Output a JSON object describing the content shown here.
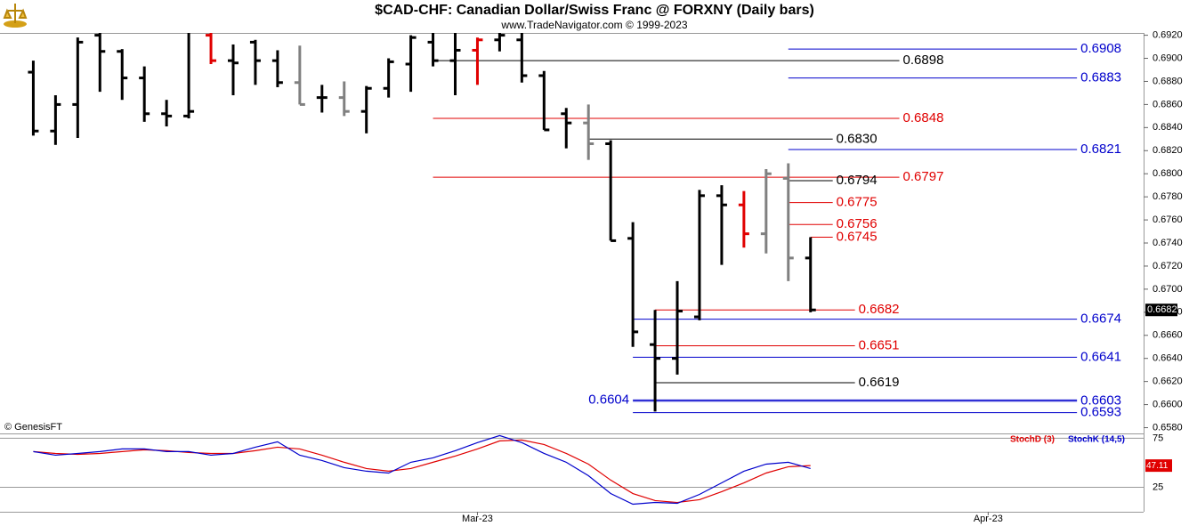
{
  "header": {
    "title": "$CAD-CHF:  Canadian Dollar/Swiss Franc @ FORXNY  (Daily bars)",
    "subtitle": "www.TradeNavigator.com © 1999-2023",
    "credit": "© GenesisFT"
  },
  "chart_data": [
    {
      "type": "ohlc",
      "x": [
        0,
        1,
        2,
        3,
        4,
        5,
        6,
        7,
        8,
        9,
        10,
        11,
        12,
        13,
        14,
        15,
        16,
        17,
        18,
        19,
        20,
        21,
        22,
        23,
        24,
        25,
        26,
        27,
        28,
        29,
        30,
        31,
        32,
        33,
        34,
        35
      ],
      "open": [
        0.6888,
        0.6837,
        0.686,
        0.692,
        0.6906,
        0.6883,
        0.6852,
        0.685,
        0.692,
        0.6898,
        0.6914,
        0.6898,
        0.6879,
        0.6866,
        0.6866,
        0.6854,
        0.6874,
        0.6895,
        0.6914,
        0.6898,
        0.6907,
        0.6916,
        0.6916,
        0.6885,
        0.6852,
        0.6844,
        0.6826,
        0.6744,
        0.6652,
        0.664,
        0.6676,
        0.6781,
        0.6773,
        0.6748,
        0.6796,
        0.6727
      ],
      "high": [
        0.6898,
        0.6868,
        0.6918,
        0.6922,
        0.6908,
        0.6893,
        0.6864,
        0.6922,
        0.6922,
        0.6912,
        0.6916,
        0.6907,
        0.6911,
        0.6877,
        0.688,
        0.6876,
        0.69,
        0.692,
        0.6922,
        0.6922,
        0.6918,
        0.6922,
        0.6922,
        0.6889,
        0.6857,
        0.686,
        0.6829,
        0.6758,
        0.6682,
        0.6707,
        0.6786,
        0.679,
        0.6785,
        0.6804,
        0.6809,
        0.6745
      ],
      "low": [
        0.6833,
        0.6825,
        0.6831,
        0.6871,
        0.6864,
        0.6845,
        0.6841,
        0.6848,
        0.6895,
        0.6868,
        0.6877,
        0.6875,
        0.686,
        0.6853,
        0.685,
        0.6835,
        0.6866,
        0.6871,
        0.6893,
        0.6868,
        0.6877,
        0.6906,
        0.6879,
        0.6838,
        0.6822,
        0.6812,
        0.6742,
        0.665,
        0.6594,
        0.6626,
        0.6673,
        0.6721,
        0.6736,
        0.6731,
        0.6707,
        0.668
      ],
      "close": [
        0.6837,
        0.686,
        0.6914,
        0.6906,
        0.6883,
        0.6852,
        0.685,
        0.6854,
        0.6898,
        0.6896,
        0.6898,
        0.6879,
        0.686,
        0.6866,
        0.6854,
        0.6874,
        0.6897,
        0.6918,
        0.6898,
        0.6907,
        0.6916,
        0.692,
        0.6885,
        0.6838,
        0.6844,
        0.6826,
        0.6742,
        0.6663,
        0.664,
        0.6681,
        0.6781,
        0.6773,
        0.6748,
        0.68,
        0.6727,
        0.6682
      ],
      "colors": [
        "#000000",
        "#000000",
        "#000000",
        "#000000",
        "#000000",
        "#000000",
        "#000000",
        "#000000",
        "#e00000",
        "#000000",
        "#000000",
        "#000000",
        "#808080",
        "#000000",
        "#808080",
        "#000000",
        "#000000",
        "#000000",
        "#000000",
        "#000000",
        "#e00000",
        "#000000",
        "#000000",
        "#000000",
        "#000000",
        "#808080",
        "#000000",
        "#000000",
        "#000000",
        "#000000",
        "#000000",
        "#000000",
        "#e00000",
        "#808080",
        "#808080",
        "#000000"
      ],
      "xlim": [
        -1.5,
        50
      ],
      "ylim": [
        0.6575,
        0.6922
      ],
      "yticks": [
        {
          "value": 0.658,
          "label": "0.6580"
        },
        {
          "value": 0.66,
          "label": "0.6600"
        },
        {
          "value": 0.662,
          "label": "0.6620"
        },
        {
          "value": 0.664,
          "label": "0.6640"
        },
        {
          "value": 0.666,
          "label": "0.6660"
        },
        {
          "value": 0.668,
          "label": "0.6680"
        },
        {
          "value": 0.67,
          "label": "0.6700"
        },
        {
          "value": 0.672,
          "label": "0.6720"
        },
        {
          "value": 0.674,
          "label": "0.6740"
        },
        {
          "value": 0.676,
          "label": "0.6760"
        },
        {
          "value": 0.678,
          "label": "0.6780"
        },
        {
          "value": 0.68,
          "label": "0.6800"
        },
        {
          "value": 0.682,
          "label": "0.6820"
        },
        {
          "value": 0.684,
          "label": "0.6840"
        },
        {
          "value": 0.686,
          "label": "0.6860"
        },
        {
          "value": 0.688,
          "label": "0.6880"
        },
        {
          "value": 0.69,
          "label": "0.6900"
        },
        {
          "value": 0.692,
          "label": "0.6920"
        }
      ],
      "levels": [
        {
          "value": 0.6908,
          "color": "#0000cc",
          "from": 34,
          "to": 47
        },
        {
          "value": 0.6898,
          "color": "#000000",
          "from": 18,
          "to": 39
        },
        {
          "value": 0.6883,
          "color": "#0000cc",
          "from": 34,
          "to": 47
        },
        {
          "value": 0.6848,
          "color": "#e00000",
          "from": 18,
          "to": 39
        },
        {
          "value": 0.683,
          "label": "0.6830",
          "color": "#000000",
          "from": 25,
          "to": 36
        },
        {
          "value": 0.6821,
          "color": "#0000cc",
          "from": 34,
          "to": 47
        },
        {
          "value": 0.6797,
          "color": "#e00000",
          "from": 18,
          "to": 39
        },
        {
          "value": 0.6794,
          "color": "#000000",
          "from": 34,
          "to": 36
        },
        {
          "value": 0.6775,
          "color": "#e00000",
          "from": 34,
          "to": 36
        },
        {
          "value": 0.6756,
          "color": "#e00000",
          "from": 34,
          "to": 36
        },
        {
          "value": 0.6745,
          "color": "#e00000",
          "from": 35,
          "to": 36
        },
        {
          "value": 0.6682,
          "color": "#e00000",
          "from": 28,
          "to": 37
        },
        {
          "value": 0.6674,
          "color": "#0000cc",
          "from": 27,
          "to": 47
        },
        {
          "value": 0.6651,
          "color": "#e00000",
          "from": 28,
          "to": 37
        },
        {
          "value": 0.6641,
          "color": "#0000cc",
          "from": 27,
          "to": 47
        },
        {
          "value": 0.6619,
          "color": "#000000",
          "from": 28,
          "to": 37
        },
        {
          "value": 0.6604,
          "color": "#0000cc",
          "from": 27,
          "to": 47,
          "side": "left"
        },
        {
          "value": 0.6603,
          "color": "#0000cc",
          "from": 27,
          "to": 47
        },
        {
          "value": 0.6593,
          "color": "#0000cc",
          "from": 27,
          "to": 47
        }
      ]
    },
    {
      "type": "line",
      "x": [
        0,
        1,
        2,
        3,
        4,
        5,
        6,
        7,
        8,
        9,
        10,
        11,
        12,
        13,
        14,
        15,
        16,
        17,
        18,
        19,
        20,
        21,
        22,
        23,
        24,
        25,
        26,
        27,
        28,
        29,
        30,
        31,
        32,
        33,
        34,
        35
      ],
      "series": [
        {
          "name": "StochD (3)",
          "color": "#e00000",
          "values": [
            61.4,
            59.5,
            58.6,
            59.5,
            61.4,
            63.2,
            62.3,
            60.5,
            59.5,
            59.5,
            62.3,
            65.9,
            64.1,
            57.7,
            50.5,
            44.1,
            41.4,
            44.1,
            50.5,
            56.8,
            64.1,
            72.3,
            73.2,
            68.6,
            59.5,
            48.6,
            32.3,
            18.6,
            11.4,
            9.5,
            12.3,
            20.5,
            29.5,
            39.5,
            45.9,
            47.11
          ]
        },
        {
          "name": "StochK (14,5)",
          "color": "#0000cc",
          "values": [
            61.4,
            57.7,
            59.5,
            61.4,
            64.1,
            64.1,
            61.4,
            61.4,
            57.7,
            59.5,
            65.9,
            71.4,
            57.7,
            52.3,
            45.0,
            41.4,
            39.5,
            50.5,
            55.0,
            62.3,
            70.5,
            77.7,
            70.5,
            59.5,
            50.5,
            36.8,
            18.6,
            7.7,
            9.5,
            8.6,
            17.7,
            29.5,
            41.4,
            48.6,
            50.5,
            44.1
          ]
        }
      ],
      "xlim": [
        -1.5,
        50
      ],
      "ylim": [
        0,
        79
      ],
      "yticks": [
        25,
        75
      ],
      "xticks": [
        {
          "value": 20,
          "label": "Mar-23"
        },
        {
          "value": 43,
          "label": "Apr-23"
        }
      ]
    }
  ]
}
